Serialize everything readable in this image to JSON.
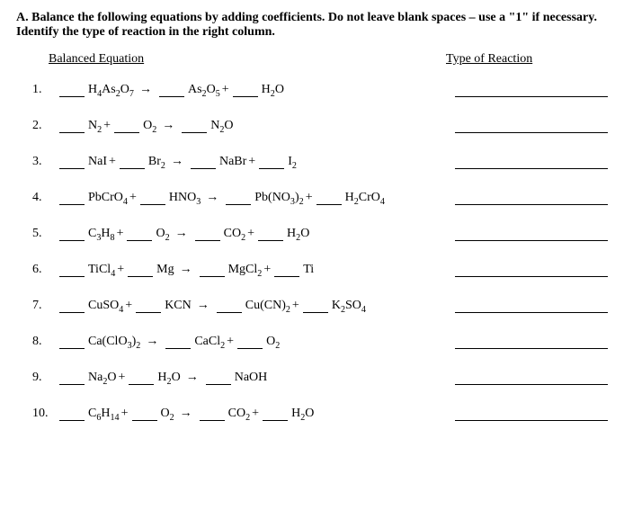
{
  "section_label": "A.",
  "instructions": "Balance the following equations by adding coefficients.   Do not leave blank spaces – use a \"1\" if necessary.  Identify the type of reaction in the right column.",
  "header_left": "Balanced Equation",
  "header_right": "Type of Reaction",
  "plus": " + ",
  "arrow": "→",
  "colors": {
    "text": "#000000",
    "background": "#ffffff"
  },
  "fontsize_body": 14,
  "items": [
    {
      "n": "1.",
      "lhs": [
        "H₄As₂O₇"
      ],
      "rhs": [
        "As₂O₅",
        "H₂O"
      ]
    },
    {
      "n": "2.",
      "lhs": [
        "N₂",
        "O₂"
      ],
      "rhs": [
        "N₂O"
      ]
    },
    {
      "n": "3.",
      "lhs": [
        "NaI",
        "Br₂"
      ],
      "rhs": [
        "NaBr",
        "I₂"
      ]
    },
    {
      "n": "4.",
      "lhs": [
        "PbCrO₄",
        "HNO₃"
      ],
      "rhs": [
        "Pb(NO₃)₂",
        "H₂CrO₄"
      ]
    },
    {
      "n": "5.",
      "lhs": [
        "C₃H₈",
        "O₂"
      ],
      "rhs": [
        "CO₂",
        "H₂O"
      ]
    },
    {
      "n": "6.",
      "lhs": [
        "TiCl₄",
        "Mg"
      ],
      "rhs": [
        "MgCl₂",
        "Ti"
      ]
    },
    {
      "n": "7.",
      "lhs": [
        "CuSO₄",
        "KCN"
      ],
      "rhs": [
        "Cu(CN)₂",
        "K₂SO₄"
      ]
    },
    {
      "n": "8.",
      "lhs": [
        "Ca(ClO₃)₂"
      ],
      "rhs": [
        "CaCl₂",
        "O₂"
      ]
    },
    {
      "n": "9.",
      "lhs": [
        "Na₂O",
        "H₂O"
      ],
      "rhs": [
        "NaOH"
      ]
    },
    {
      "n": "10.",
      "lhs": [
        "C₆H₁₄",
        "O₂"
      ],
      "rhs": [
        "CO₂",
        "H₂O"
      ]
    }
  ]
}
